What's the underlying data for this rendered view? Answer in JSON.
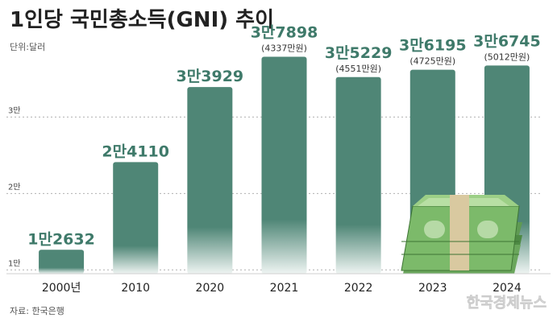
{
  "title": "1인당 국민총소득(GNI) 추이",
  "unit_note": "단위:달러",
  "source": "자료: 한국은행",
  "watermark": "한국경제뉴스",
  "colors": {
    "bar_top": "#4f8676",
    "bar_bottom": "#eef4f2",
    "value_text": "#3f7a6a",
    "axis_text": "#444444",
    "title_text": "#222222"
  },
  "chart_data": {
    "type": "bar",
    "title": "1인당 국민총소득(GNI) 추이",
    "ylabel": "단위:달러",
    "ylim": [
      9500,
      39000
    ],
    "grid": true,
    "y_ticks": [
      {
        "value": 10000,
        "label": "1만"
      },
      {
        "value": 20000,
        "label": "2만"
      },
      {
        "value": 30000,
        "label": "3만"
      }
    ],
    "categories": [
      "2000년",
      "2010",
      "2020",
      "2021",
      "2022",
      "2023",
      "2024"
    ],
    "values": [
      12632,
      24110,
      33929,
      37898,
      35229,
      36195,
      36745
    ],
    "value_labels": [
      "1만2632",
      "2만4110",
      "3만3929",
      "3만7898",
      "3만5229",
      "3만6195",
      "3만6745"
    ],
    "sub_labels": [
      "",
      "",
      "",
      "(4337만원)",
      "(4551만원)",
      "(4725만원)",
      "(5012만원)"
    ]
  },
  "decoration": {
    "image": "money-stack-icon"
  }
}
